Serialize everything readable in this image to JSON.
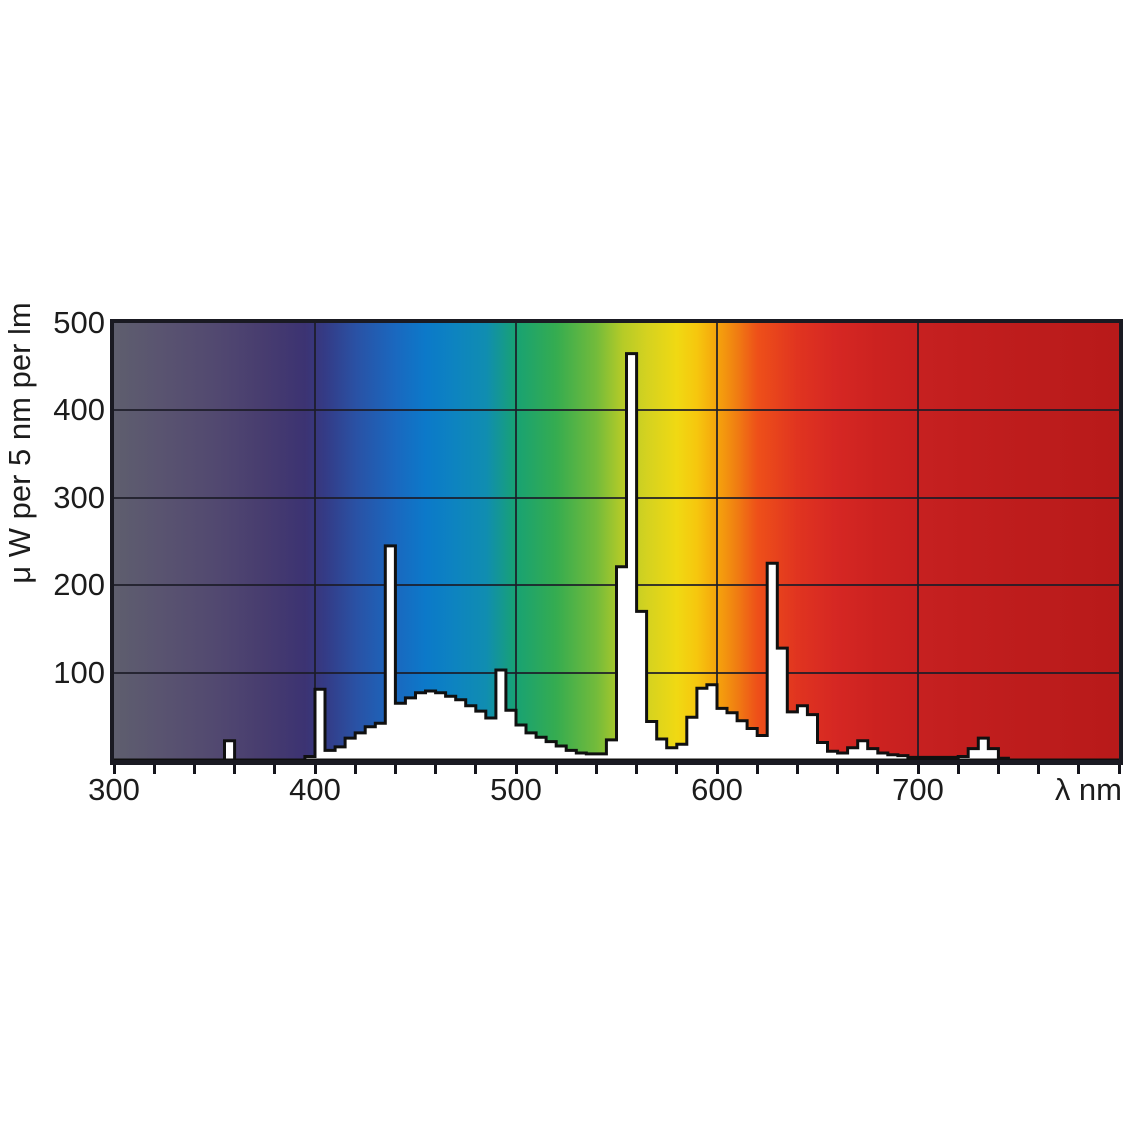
{
  "figure": {
    "background_color": "#ffffff",
    "frame_color": "#1a1a22",
    "gridline_color": "#1c1c28",
    "text_color": "#1c1c1c"
  },
  "labels": {
    "y_axis": "μ W per 5 nm per lm",
    "x_unit": "λ nm"
  },
  "chart_data": {
    "type": "area",
    "style": "step-histogram, 5 nm bins, white fill with black outline drawn over a visible-spectrum gradient background",
    "title": "",
    "xlabel": "λ nm",
    "ylabel": "μ W per 5 nm per lm",
    "xlim": [
      300,
      800
    ],
    "ylim": [
      0,
      500
    ],
    "x_major_ticks": [
      300,
      400,
      500,
      600,
      700
    ],
    "x_minor_tick_step": 20,
    "y_ticks": [
      100,
      200,
      300,
      400,
      500
    ],
    "grid": "major gridlines on, inside plot, behind curve",
    "bin_start_nm": 300,
    "bin_width_nm": 5,
    "values": [
      0,
      0,
      0,
      0,
      0,
      0,
      0,
      0,
      0,
      0,
      0,
      22,
      0,
      0,
      0,
      0,
      0,
      0,
      0,
      4,
      81,
      11,
      15,
      25,
      31,
      38,
      42,
      245,
      65,
      71,
      77,
      79,
      77,
      73,
      69,
      62,
      56,
      48,
      103,
      57,
      40,
      31,
      26,
      21,
      16,
      11,
      8,
      7,
      7,
      23,
      221,
      465,
      170,
      44,
      24,
      14,
      18,
      49,
      82,
      86,
      59,
      54,
      45,
      36,
      28,
      225,
      128,
      55,
      62,
      52,
      20,
      10,
      8,
      14,
      22,
      13,
      8,
      6,
      5,
      3,
      3,
      3,
      3,
      3,
      4,
      13,
      25,
      13,
      2,
      0,
      0,
      0,
      0,
      0,
      0,
      0,
      0,
      0,
      0,
      0
    ],
    "notable_peaks": [
      {
        "nm": 405,
        "value": 81
      },
      {
        "nm": 435,
        "value": 245
      },
      {
        "nm": 490,
        "value": 103
      },
      {
        "nm": 545,
        "value": 465
      },
      {
        "nm": 625,
        "value": 225
      }
    ],
    "curve_fill": "#ffffff",
    "curve_stroke": "#101010",
    "spectrum_gradient": [
      {
        "nm": 300,
        "color": "#5e5e6e"
      },
      {
        "nm": 325,
        "color": "#595370"
      },
      {
        "nm": 350,
        "color": "#524970"
      },
      {
        "nm": 375,
        "color": "#473c6f"
      },
      {
        "nm": 395,
        "color": "#3c3372"
      },
      {
        "nm": 405,
        "color": "#343b86"
      },
      {
        "nm": 420,
        "color": "#2a51a4"
      },
      {
        "nm": 440,
        "color": "#1a68bf"
      },
      {
        "nm": 455,
        "color": "#0c79c9"
      },
      {
        "nm": 470,
        "color": "#0d84c0"
      },
      {
        "nm": 485,
        "color": "#108db1"
      },
      {
        "nm": 500,
        "color": "#18a273"
      },
      {
        "nm": 520,
        "color": "#35ac50"
      },
      {
        "nm": 540,
        "color": "#73bb3b"
      },
      {
        "nm": 553,
        "color": "#b5cb27"
      },
      {
        "nm": 565,
        "color": "#d4d220"
      },
      {
        "nm": 580,
        "color": "#f0d913"
      },
      {
        "nm": 590,
        "color": "#f6c70e"
      },
      {
        "nm": 600,
        "color": "#f5a40c"
      },
      {
        "nm": 610,
        "color": "#f07d12"
      },
      {
        "nm": 620,
        "color": "#ee5019"
      },
      {
        "nm": 640,
        "color": "#e03420"
      },
      {
        "nm": 660,
        "color": "#d52723"
      },
      {
        "nm": 680,
        "color": "#cc2220"
      },
      {
        "nm": 700,
        "color": "#c62020"
      },
      {
        "nm": 740,
        "color": "#bf1d1d"
      },
      {
        "nm": 800,
        "color": "#b81a1a"
      }
    ]
  }
}
